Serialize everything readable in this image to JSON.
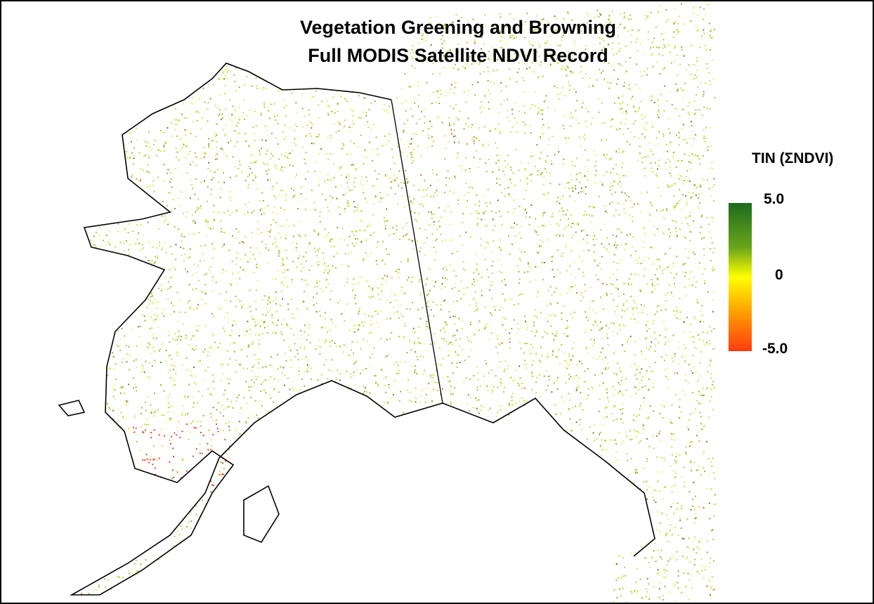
{
  "title": {
    "line1": "Vegetation Greening and Browning",
    "line2": "Full MODIS Satellite NDVI Record"
  },
  "legend": {
    "title": "TIN (ΣNDVI)",
    "max_label": "5.0",
    "mid_label": "0",
    "min_label": "-5.0",
    "range": [
      -5.0,
      5.0
    ],
    "colors": {
      "max": "#1e6b1e",
      "upper": "#6aa51a",
      "mid": "#ffff00",
      "lower": "#ff9900",
      "min": "#ff3b10"
    }
  },
  "map": {
    "region": "Alaska and western Canada",
    "ocean_color": "#ffffff",
    "coast_color": "#000000"
  }
}
